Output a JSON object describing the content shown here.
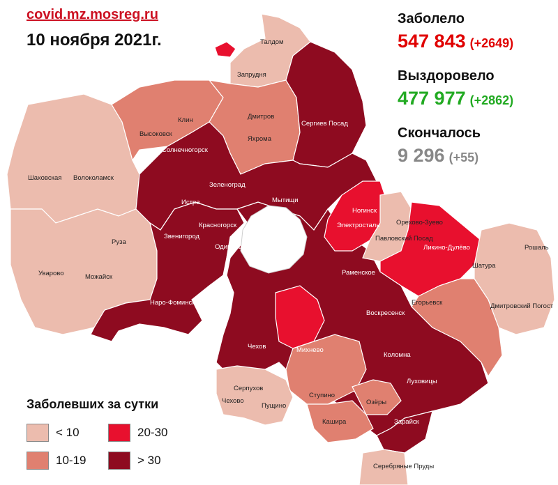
{
  "header": {
    "source": "covid.mz.mosreg.ru",
    "date": "10 ноября 2021г."
  },
  "stats": {
    "infected_label": "Заболело",
    "infected_total": "547 843",
    "infected_delta": "(+2649)",
    "recovered_label": "Выздоровело",
    "recovered_total": "477 977",
    "recovered_delta": "(+2862)",
    "deaths_label": "Скончалось",
    "deaths_total": "9 296",
    "deaths_delta": "(+55)"
  },
  "colors": {
    "lt10": "#ecbcae",
    "r10_19": "#e08070",
    "r20_30": "#e8102e",
    "gt30": "#8e0b20",
    "moscow": "#ffffff",
    "infected": "#e00000",
    "recovered": "#22aa22",
    "deaths": "#888888"
  },
  "legend": {
    "title": "Заболевших за сутки",
    "items": [
      {
        "label": "< 10",
        "color_key": "lt10"
      },
      {
        "label": "20-30",
        "color_key": "r20_30"
      },
      {
        "label": "10-19",
        "color_key": "r10_19"
      },
      {
        "label": "> 30",
        "color_key": "gt30"
      }
    ]
  },
  "map": {
    "towns": [
      "Талдом",
      "Запрудня",
      "Клин",
      "Высоковск",
      "Дмитров",
      "Яхрома",
      "Сергиев Посад",
      "Солнечногорск",
      "Шаховская",
      "Волоколамск",
      "Зеленоград",
      "Истра",
      "Мытищи",
      "Ногинск",
      "Электросталь",
      "Красногорск",
      "Звенигород",
      "Павловский Посад",
      "Орехово-Зуево",
      "Ликино-Дулёво",
      "Одинцово",
      "Руза",
      "Рошаль",
      "Шатура",
      "Уварово",
      "Можайск",
      "Раменское",
      "Наро-Фоминск",
      "Егорьевск",
      "Дмитровский Погост",
      "Воскресенск",
      "Чехов",
      "Михнево",
      "Коломна",
      "Серпухов",
      "Луховицы",
      "Пущино",
      "Ступино",
      "Озёры",
      "Чехово",
      "Кашира",
      "Зарайск",
      "Серебряные Пруды"
    ]
  }
}
